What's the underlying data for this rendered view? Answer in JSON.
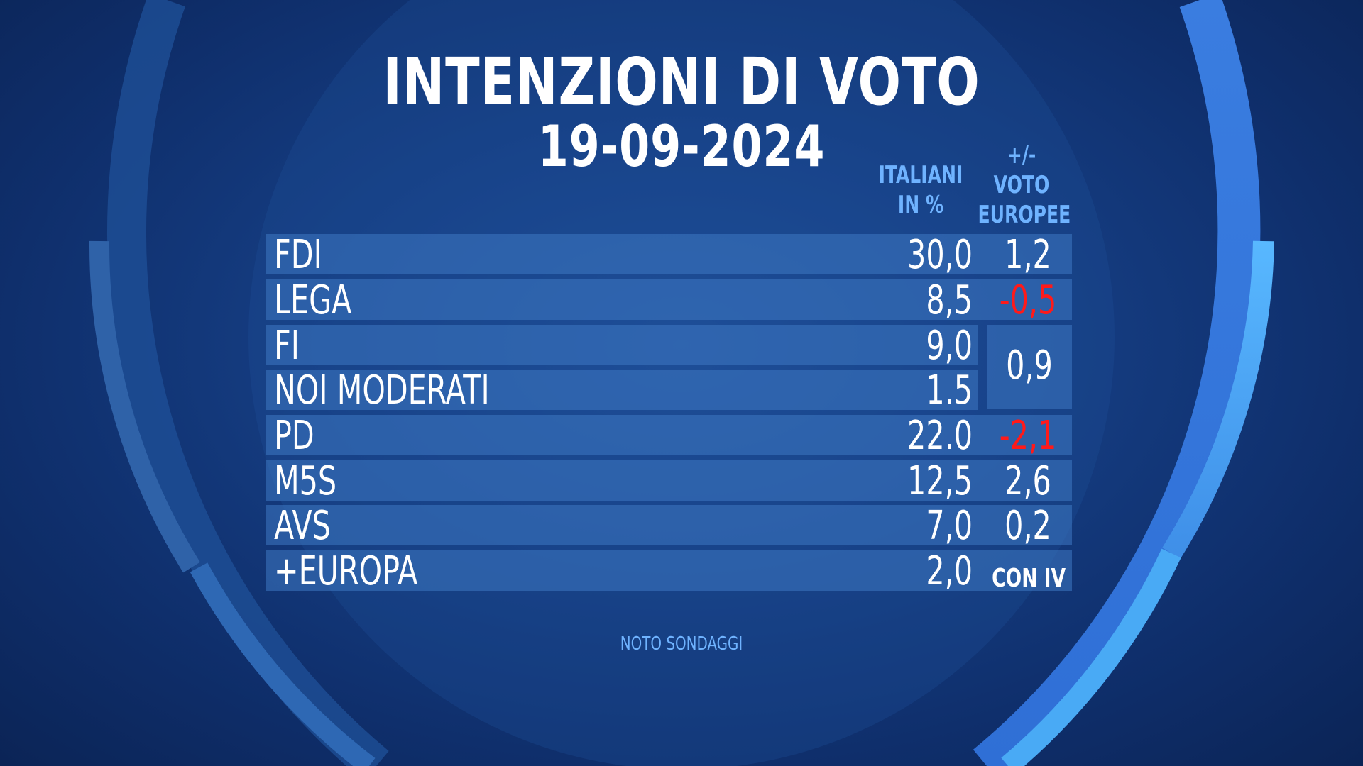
{
  "title": "INTENZIONI DI VOTO",
  "date": "19-09-2024",
  "source": "NOTO SONDAGGI",
  "colors": {
    "positive": "#ffffff",
    "negative": "#ff1a1a",
    "header": "#6fb3ff"
  },
  "chart_data": {
    "type": "table",
    "columns": [
      "ITALIANI IN %",
      "+/- VOTO EUROPEE"
    ],
    "column_headers": {
      "italiani": [
        "ITALIANI",
        "IN %"
      ],
      "europee": [
        "+/-",
        "VOTO",
        "EUROPEE"
      ]
    },
    "rows": [
      {
        "party": "FDI",
        "value": "30,0",
        "delta": "1,2"
      },
      {
        "party": "LEGA",
        "value": "8,5",
        "delta": "-0,5"
      },
      {
        "party": "FI",
        "value": "9,0",
        "delta": ""
      },
      {
        "party": "NOI MODERATI",
        "value": "1.5",
        "delta": ""
      },
      {
        "party": "PD",
        "value": "22.0",
        "delta": "-2,1"
      },
      {
        "party": "M5S",
        "value": "12,5",
        "delta": "2,6"
      },
      {
        "party": "AVS",
        "value": "7,0",
        "delta": "0,2"
      },
      {
        "party": "+EUROPA",
        "value": "2,0",
        "delta": "CON IV"
      }
    ],
    "merged_delta": {
      "parties": [
        "FI",
        "NOI MODERATI"
      ],
      "delta": "0,9"
    }
  }
}
